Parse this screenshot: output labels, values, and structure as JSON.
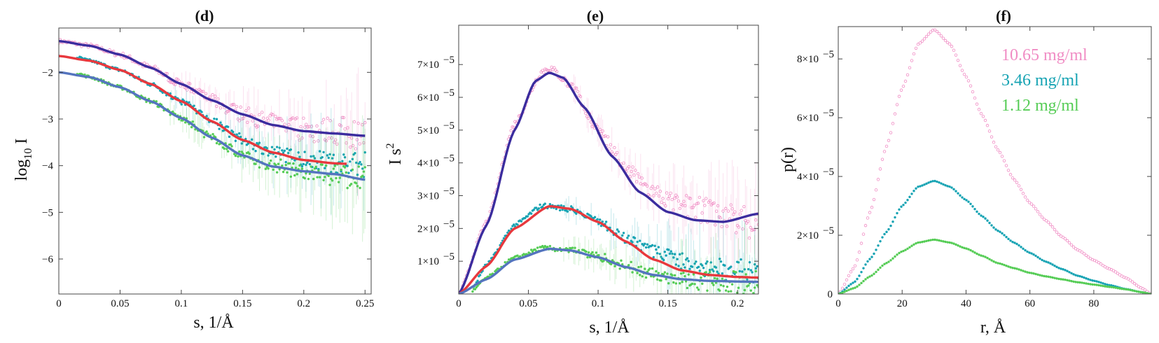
{
  "colors": {
    "pink": "#f08cc4",
    "teal": "#16a3b3",
    "green": "#55cc55",
    "navy": "#3b2c9e",
    "red": "#e8383d",
    "steel": "#5474bf",
    "axis": "#444444"
  },
  "chart_data": [
    {
      "panel": "d",
      "type": "scatter",
      "title": "(d)",
      "xlabel": "s, 1/Å",
      "ylabel_main": "log",
      "ylabel_sub": "10",
      "ylabel_tail": " I",
      "xlim": [
        0,
        0.255
      ],
      "ylim": [
        -6.75,
        -1.05
      ],
      "xticks": [
        0,
        0.05,
        0.1,
        0.15,
        0.2,
        0.25
      ],
      "xtick_labels": [
        "0",
        "0.05",
        "0.1",
        "0.15",
        "0.2",
        "0.25"
      ],
      "yticks": [
        -2,
        -3,
        -4,
        -5,
        -6
      ],
      "ytick_labels": [
        "−2",
        "−3",
        "−4",
        "−5",
        "−6"
      ],
      "series": [
        {
          "name": "10.65 mg/ml data",
          "color": "pink",
          "marker": "open",
          "x": [
            0,
            0.025,
            0.05,
            0.075,
            0.1,
            0.125,
            0.15,
            0.175,
            0.2,
            0.225,
            0.25
          ],
          "y": [
            -1.33,
            -1.43,
            -1.62,
            -1.9,
            -2.25,
            -2.6,
            -2.9,
            -3.1,
            -3.22,
            -3.27,
            -3.32
          ]
        },
        {
          "name": "3.46 mg/ml data",
          "color": "teal",
          "marker": "filled",
          "x": [
            0.015,
            0.025,
            0.05,
            0.075,
            0.1,
            0.125,
            0.15,
            0.175,
            0.2,
            0.225,
            0.25
          ],
          "y": [
            -1.68,
            -1.75,
            -1.95,
            -2.25,
            -2.62,
            -3.05,
            -3.45,
            -3.72,
            -3.85,
            -3.92,
            -3.98
          ]
        },
        {
          "name": "1.12 mg/ml data",
          "color": "green",
          "marker": "filled",
          "x": [
            0.015,
            0.025,
            0.05,
            0.075,
            0.1,
            0.125,
            0.15,
            0.175,
            0.2,
            0.225,
            0.25
          ],
          "y": [
            -2.02,
            -2.1,
            -2.32,
            -2.62,
            -2.98,
            -3.4,
            -3.78,
            -4.0,
            -4.12,
            -4.2,
            -4.28
          ]
        },
        {
          "name": "10.65 mg/ml fit",
          "color": "navy",
          "marker": "line",
          "x": [
            0,
            0.025,
            0.05,
            0.075,
            0.1,
            0.125,
            0.15,
            0.175,
            0.2,
            0.225,
            0.25
          ],
          "y": [
            -1.33,
            -1.43,
            -1.62,
            -1.9,
            -2.25,
            -2.6,
            -2.9,
            -3.13,
            -3.26,
            -3.31,
            -3.36
          ]
        },
        {
          "name": "3.46 mg/ml fit",
          "color": "red",
          "marker": "line",
          "x": [
            0,
            0.025,
            0.05,
            0.075,
            0.1,
            0.125,
            0.15,
            0.175,
            0.2,
            0.225,
            0.235
          ],
          "y": [
            -1.65,
            -1.75,
            -1.95,
            -2.25,
            -2.62,
            -3.05,
            -3.45,
            -3.72,
            -3.88,
            -3.95,
            -3.96
          ]
        },
        {
          "name": "1.12 mg/ml fit",
          "color": "steel",
          "marker": "line",
          "x": [
            0,
            0.025,
            0.05,
            0.075,
            0.1,
            0.125,
            0.15,
            0.175,
            0.2,
            0.225,
            0.25
          ],
          "y": [
            -2.0,
            -2.1,
            -2.32,
            -2.62,
            -2.98,
            -3.4,
            -3.78,
            -4.02,
            -4.12,
            -4.18,
            -4.3
          ]
        }
      ]
    },
    {
      "panel": "e",
      "type": "scatter",
      "title": "(e)",
      "xlabel": "s, 1/Å",
      "ylabel_main": "I s",
      "ylabel_sup": "2",
      "xlim": [
        0,
        0.215
      ],
      "ylim": [
        0,
        8.2e-05
      ],
      "xticks": [
        0,
        0.05,
        0.1,
        0.15,
        0.2
      ],
      "xtick_labels": [
        "0",
        "0.05",
        "0.1",
        "0.15",
        "0.2"
      ],
      "yticks": [
        1e-05,
        2e-05,
        3e-05,
        4e-05,
        5e-05,
        6e-05,
        7e-05
      ],
      "ytick_labels": [
        "1×10",
        "2×10",
        "3×10",
        "4×10",
        "5×10",
        "6×10",
        "7×10"
      ],
      "ytick_exp": "−5",
      "series": [
        {
          "name": "10.65 mg/ml data",
          "color": "pink",
          "marker": "open",
          "x": [
            0,
            0.02,
            0.04,
            0.06,
            0.065,
            0.08,
            0.1,
            0.12,
            0.14,
            0.16,
            0.18,
            0.2,
            0.215
          ],
          "y": [
            0,
            2.2e-05,
            5.2e-05,
            6.8e-05,
            6.9e-05,
            6.4e-05,
            5e-05,
            3.8e-05,
            3.1e-05,
            2.7e-05,
            2.5e-05,
            2.3e-05,
            2.2e-05
          ]
        },
        {
          "name": "3.46 mg/ml data",
          "color": "teal",
          "marker": "filled",
          "x": [
            0.01,
            0.02,
            0.04,
            0.06,
            0.08,
            0.1,
            0.12,
            0.14,
            0.16,
            0.18,
            0.2,
            0.215
          ],
          "y": [
            2e-06,
            9e-06,
            2.1e-05,
            2.7e-05,
            2.6e-05,
            2.2e-05,
            1.7e-05,
            1.3e-05,
            1e-05,
            8e-06,
            7e-06,
            6e-06
          ]
        },
        {
          "name": "1.12 mg/ml data",
          "color": "green",
          "marker": "filled",
          "x": [
            0.01,
            0.02,
            0.04,
            0.06,
            0.08,
            0.1,
            0.12,
            0.14,
            0.16,
            0.18,
            0.2,
            0.215
          ],
          "y": [
            1e-06,
            5e-06,
            1.1e-05,
            1.4e-05,
            1.35e-05,
            1.15e-05,
            8.5e-06,
            6e-06,
            4.5e-06,
            3.8e-06,
            3.5e-06,
            3.3e-06
          ]
        },
        {
          "name": "10.65 mg/ml fit",
          "color": "navy",
          "marker": "line",
          "x": [
            0,
            0.02,
            0.04,
            0.055,
            0.065,
            0.075,
            0.09,
            0.11,
            0.13,
            0.15,
            0.17,
            0.19,
            0.215
          ],
          "y": [
            0,
            2.1e-05,
            5e-05,
            6.5e-05,
            6.75e-05,
            6.6e-05,
            5.7e-05,
            4.2e-05,
            3.1e-05,
            2.5e-05,
            2.25e-05,
            2.2e-05,
            2.45e-05
          ]
        },
        {
          "name": "3.46 mg/ml fit",
          "color": "red",
          "marker": "line",
          "x": [
            0,
            0.02,
            0.04,
            0.065,
            0.08,
            0.1,
            0.12,
            0.14,
            0.16,
            0.18,
            0.2,
            0.215
          ],
          "y": [
            0,
            8.5e-06,
            2e-05,
            2.68e-05,
            2.6e-05,
            2.2e-05,
            1.6e-05,
            1.05e-05,
            7.2e-06,
            5.8e-06,
            5.2e-06,
            5e-06
          ]
        },
        {
          "name": "1.12 mg/ml fit",
          "color": "steel",
          "marker": "line",
          "x": [
            0,
            0.02,
            0.04,
            0.065,
            0.08,
            0.1,
            0.12,
            0.14,
            0.16,
            0.18,
            0.2,
            0.215
          ],
          "y": [
            0,
            4.5e-06,
            1.05e-05,
            1.38e-05,
            1.33e-05,
            1.12e-05,
            8.2e-06,
            5.8e-06,
            4.5e-06,
            4e-06,
            3.8e-06,
            3.7e-06
          ]
        }
      ]
    },
    {
      "panel": "f",
      "type": "scatter",
      "title": "(f)",
      "xlabel": "r, Å",
      "ylabel_main": "p(r)",
      "xlim": [
        0,
        98
      ],
      "ylim": [
        0,
        9.1e-05
      ],
      "xticks": [
        0,
        20,
        40,
        60,
        80
      ],
      "xtick_labels": [
        "0",
        "20",
        "40",
        "60",
        "80"
      ],
      "yticks": [
        0,
        2e-05,
        4e-05,
        6e-05,
        8e-05
      ],
      "ytick_labels": [
        "0",
        "2×10",
        "4×10",
        "6×10",
        "8×10"
      ],
      "ytick_exp": "−5",
      "legend": [
        {
          "label": "10.65 mg/ml",
          "color": "pink"
        },
        {
          "label": "3.46 mg/ml",
          "color": "teal"
        },
        {
          "label": "1.12 mg/ml",
          "color": "green"
        }
      ],
      "series": [
        {
          "name": "10.65 mg/ml",
          "color": "pink",
          "marker": "open",
          "x": [
            0,
            5,
            10,
            15,
            20,
            25,
            30,
            35,
            40,
            45,
            50,
            55,
            60,
            65,
            70,
            75,
            80,
            85,
            90,
            95,
            98
          ],
          "y": [
            0,
            9e-06,
            2.8e-05,
            5e-05,
            7e-05,
            8.5e-05,
            9e-05,
            8.5e-05,
            7.4e-05,
            6.1e-05,
            4.9e-05,
            3.9e-05,
            3.1e-05,
            2.5e-05,
            1.95e-05,
            1.5e-05,
            1.15e-05,
            8.5e-06,
            5.5e-06,
            2e-06,
            0
          ]
        },
        {
          "name": "3.46 mg/ml",
          "color": "teal",
          "marker": "filled",
          "x": [
            0,
            5,
            10,
            15,
            20,
            25,
            30,
            35,
            40,
            45,
            50,
            55,
            60,
            65,
            70,
            75,
            80,
            85,
            90,
            95,
            98
          ],
          "y": [
            0,
            4e-06,
            1.2e-05,
            2.1e-05,
            3e-05,
            3.65e-05,
            3.85e-05,
            3.65e-05,
            3.2e-05,
            2.65e-05,
            2.15e-05,
            1.75e-05,
            1.4e-05,
            1.1e-05,
            8.5e-06,
            6.2e-06,
            4.5e-06,
            3e-06,
            1.7e-06,
            6e-07,
            0
          ]
        },
        {
          "name": "1.12 mg/ml",
          "color": "green",
          "marker": "filled",
          "x": [
            0,
            5,
            10,
            15,
            20,
            25,
            30,
            35,
            40,
            45,
            50,
            55,
            60,
            65,
            70,
            75,
            80,
            85,
            90,
            95,
            98
          ],
          "y": [
            0,
            2e-06,
            6e-06,
            1.05e-05,
            1.45e-05,
            1.75e-05,
            1.85e-05,
            1.75e-05,
            1.55e-05,
            1.3e-05,
            1.05e-05,
            8.8e-06,
            7.2e-06,
            6e-06,
            5e-06,
            4e-06,
            3.2e-06,
            2.4e-06,
            1.6e-06,
            6e-07,
            0
          ]
        }
      ]
    }
  ]
}
